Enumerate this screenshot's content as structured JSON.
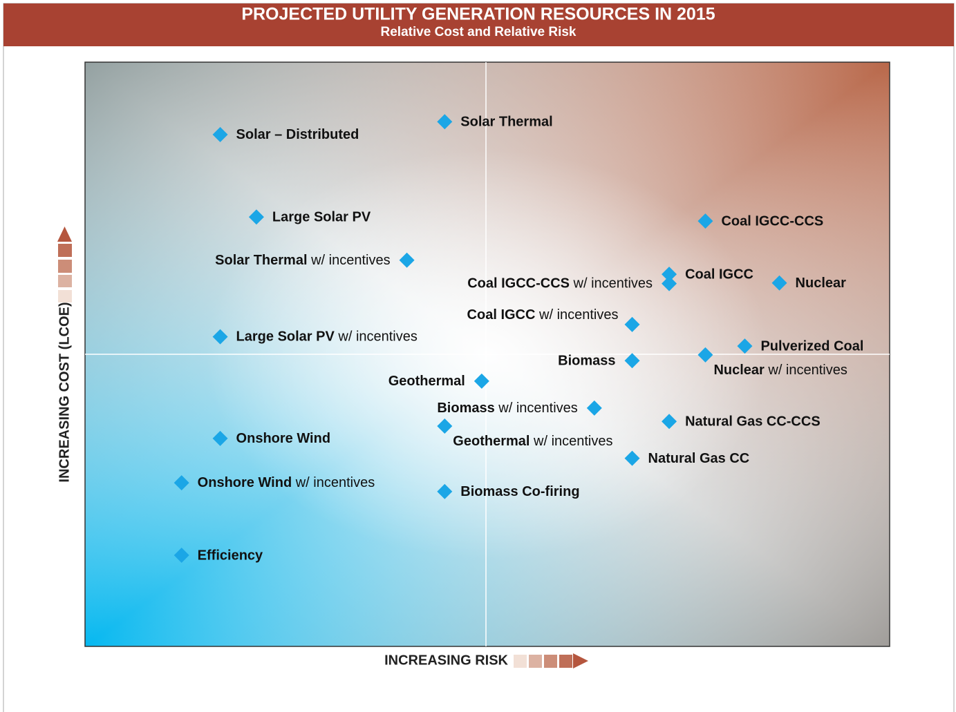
{
  "chart_data": {
    "type": "scatter",
    "title": "PROJECTED UTILITY GENERATION RESOURCES IN 2015",
    "subtitle": "Relative Cost and Relative Risk",
    "x_label": "INCREASING RISK",
    "y_label": "INCREASING COST (LCOE)",
    "color": "#1ba6e6",
    "xlim": [
      0,
      100
    ],
    "ylim": [
      0,
      100
    ],
    "labels": [
      "Solar – Distributed",
      "Solar Thermal",
      "Large Solar PV",
      "Solar Thermal w/ incentives",
      "Coal IGCC-CCS",
      "Coal IGCC",
      "Coal IGCC-CCS w/ incentives",
      "Nuclear",
      "Coal IGCC w/ incentives",
      "Large Solar PV w/ incentives",
      "Pulverized Coal",
      "Biomass",
      "Nuclear w/ incentives",
      "Geothermal",
      "Biomass w/ incentives",
      "Geothermal w/ incentives",
      "Natural Gas CC-CCS",
      "Onshore Wind",
      "Natural Gas CC",
      "Onshore Wind w/ incentives",
      "Biomass Co-firing",
      "Efficiency"
    ],
    "x": [
      16.8,
      44.7,
      21.3,
      40.0,
      77.1,
      72.6,
      72.6,
      86.3,
      68.0,
      16.8,
      82.0,
      68.0,
      77.1,
      49.3,
      63.3,
      44.7,
      72.6,
      16.8,
      68.0,
      12.0,
      44.7,
      12.0
    ],
    "values": [
      87.6,
      89.8,
      73.5,
      66.1,
      72.8,
      63.7,
      62.1,
      62.2,
      55.1,
      53.0,
      51.4,
      48.9,
      49.9,
      45.4,
      40.8,
      37.7,
      38.5,
      35.6,
      32.2,
      28.0,
      26.5,
      15.6
    ]
  }
}
